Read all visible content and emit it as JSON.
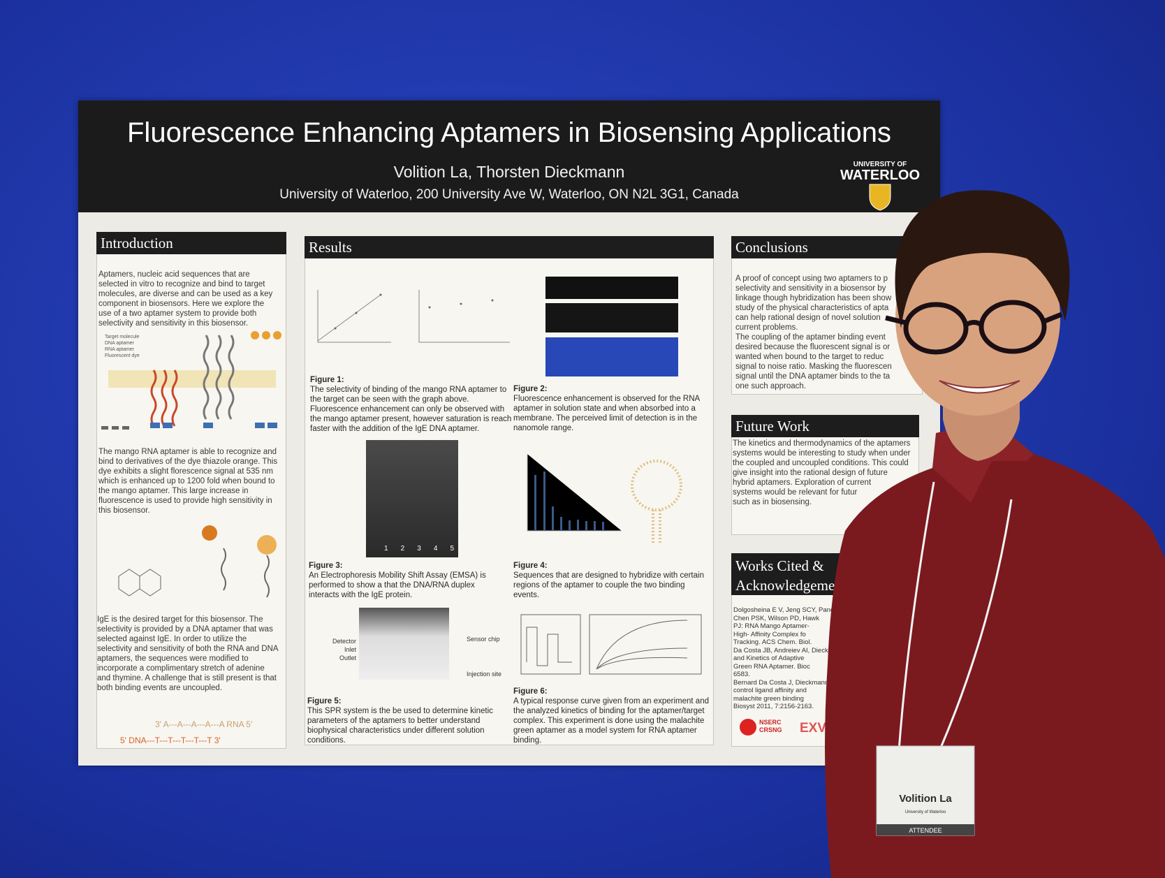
{
  "poster": {
    "title": "Fluorescence Enhancing Aptamers in Biosensing Applications",
    "authors": "Volition La, Thorsten Dieckmann",
    "affiliation": "University of Waterloo, 200 University Ave W, Waterloo, ON N2L 3G1, Canada",
    "logo": [
      "UNIVERSITY OF",
      "WATERLOO"
    ]
  },
  "introduction": {
    "heading": "Introduction",
    "paragraphs": [
      "Aptamers, nucleic acid sequences that are selected in vitro to recognize and bind to target molecules, are diverse and can be used as a key component in biosensors. Here we explore the use of a two aptamer system to provide both selectivity and sensitivity in this biosensor.",
      "The mango RNA aptamer is able to recognize and bind to derivatives of the dye thiazole orange. This dye exhibits a slight florescence signal at 535 nm which is enhanced up to 1200 fold when bound to the mango aptamer. This large increase in fluorescence is used to provide high sensitivity in this biosensor.",
      "IgE is the desired target for this biosensor. The selectivity is provided by a DNA aptamer that was selected against IgE. In order to utilize the selectivity and sensitivity of both the RNA and DNA aptamers, the sequences were modified to incorporate a complimentary stretch of adenine and thymine. A challenge that is still present is that both binding events are uncoupled."
    ],
    "legend": [
      "Target molecule",
      "DNA aptamer",
      "RNA aptamer",
      "Fluorescent dye"
    ],
    "sequence": [
      "3' A---A---A---A---A   RNA 5'",
      "5' DNA---T---T---T---T---T 3'"
    ]
  },
  "results": {
    "heading": "Results",
    "figures": [
      {
        "label": "Figure 1:",
        "caption": "The selectivity of binding of the mango RNA aptamer to the target can be seen with the graph above. Fluorescence enhancement can only be observed with the mango aptamer present, however saturation is reach faster with the addition of the IgE DNA aptamer."
      },
      {
        "label": "Figure 2:",
        "caption": "Fluorescence enhancement is observed for the RNA aptamer in solution state and when absorbed into a membrane. The perceived limit of detection is in the nanomole range."
      },
      {
        "label": "Figure 3:",
        "caption": "An Electrophoresis Mobility Shift Assay (EMSA) is performed to show a that the DNA/RNA duplex interacts with the IgE protein."
      },
      {
        "label": "Figure 4:",
        "caption": "Sequences that are designed to hybridize with certain regions of the aptamer to couple the two binding events."
      },
      {
        "label": "Figure 5:",
        "caption": "This SPR system is the be used to determine kinetic parameters of the aptamers to better understand biophysical characteristics under different solution conditions."
      },
      {
        "label": "Figure 6:",
        "caption": "A typical response curve given from an experiment and the analyzed kinetics of binding for the aptamer/target complex. This experiment is done using the malachite green aptamer as a model system for RNA aptamer binding."
      }
    ],
    "gel_lanes": [
      "1",
      "2",
      "3",
      "4",
      "5"
    ],
    "spr_labels": [
      "Detector",
      "Inlet",
      "Outlet",
      "Sensor chip",
      "Injection site"
    ]
  },
  "conclusions": {
    "heading": "Conclusions",
    "lines": [
      "A proof of concept using two aptamers to p",
      "selectivity and  sensitivity in a biosensor by",
      "linkage though hybridization has been show",
      "study of the physical characteristics of apta",
      "can help rational design of novel solution",
      "current problems.",
      "The coupling of the aptamer binding event",
      "desired because the fluorescent signal is or",
      "wanted when bound to the target to reduc",
      "signal to noise ratio. Masking the fluorescen",
      "signal until the DNA aptamer binds to the ta",
      "one such approach."
    ]
  },
  "future_work": {
    "heading": "Future Work",
    "lines": [
      "The kinetics and thermodynamics of the aptamers",
      "systems would be interesting to study when under",
      "the coupled and uncoupled conditions. This could",
      "give insight into the rational design of future",
      "hybrid aptamers. Exploration of current",
      "systems would be relevant for futur",
      "such as in biosensing."
    ]
  },
  "works_cited": {
    "heading": [
      "Works Cited &",
      "Acknowledgeme"
    ],
    "lines": [
      "Dolgosheina E V, Jeng SCY, Pancha",
      "Chen PSK, Wilson PD, Hawk",
      "PJ: RNA Mango Aptamer-",
      "High- Affinity Complex fo",
      "Tracking. ACS Chem. Biol.",
      "Da Costa JB, Andreiev AI, Dieckma",
      "and Kinetics of Adaptive",
      "Green RNA Aptamer. Bioc",
      "6583.",
      "Bernard Da Costa J, Dieckmann T: E",
      "control ligand  affinity and",
      "malachite green binding",
      "Biosyst  2011, 7:2156-2163."
    ]
  },
  "sponsors": [
    "NSERC",
    "CRSNG",
    "EXVIVO"
  ],
  "badge": {
    "name": "Volition La",
    "affiliation": "University of Waterloo",
    "role": "ATTENDEE"
  }
}
